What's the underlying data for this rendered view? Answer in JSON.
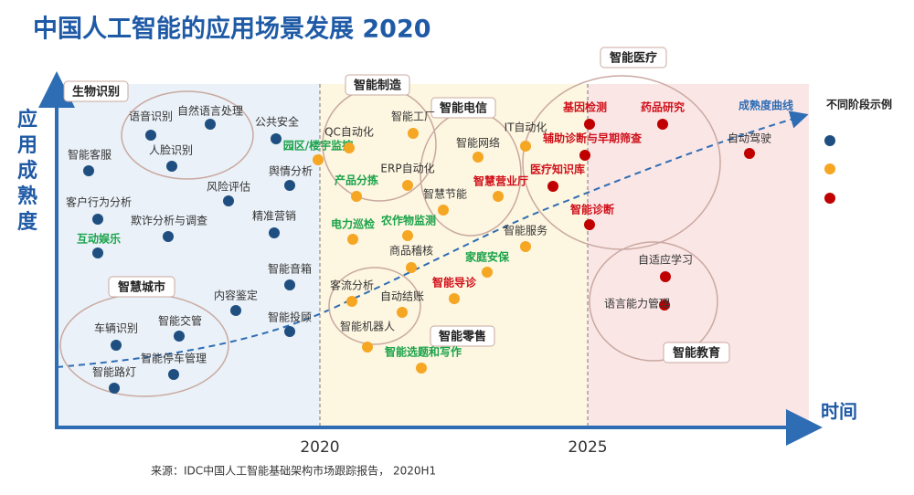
{
  "header": {
    "title": "中国人工智能的应用场景发展 2020"
  },
  "axes": {
    "y_label_lines": [
      "应",
      "用",
      "成",
      "熟",
      "度"
    ],
    "x_label": "时间",
    "x_ticks": [
      "2020",
      "2025"
    ]
  },
  "curve_label": "成熟度曲线",
  "legend": {
    "title": "不同阶段示例"
  },
  "groups": [
    "生物识别",
    "智慧城市",
    "智能制造",
    "智能电信",
    "智能零售",
    "智能医疗",
    "智能教育"
  ],
  "points": [
    "语音识别",
    "自然语言处理",
    "人脸识别",
    "公共安全",
    "智能客服",
    "风险评估",
    "舆情分析",
    "客户行为分析",
    "欺诈分析与调查",
    "精准营销",
    "互动娱乐",
    "智能音箱",
    "内容鉴定",
    "智能投顾",
    "智能交管",
    "车辆识别",
    "智能停车管理",
    "智能路灯",
    "园区/楼宇监控",
    "QC自动化",
    "智能工厂",
    "产品分拣",
    "ERP自动化",
    "智能网络",
    "IT自动化",
    "智慧营业厅",
    "智慧节能",
    "电力巡检",
    "农作物监测",
    "商品稽核",
    "智能服务",
    "家庭安保",
    "智能导诊",
    "客流分析",
    "自动结账",
    "智能机器人",
    "智能选题和写作",
    "基因检测",
    "药品研究",
    "辅助诊断与早期筛查",
    "自动驾驶",
    "医疗知识库",
    "智能诊断",
    "自适应学习",
    "语言能力管理"
  ],
  "footer": {
    "source": "来源：IDC中国人工智能基础架构市场跟踪报告， 2020H1"
  }
}
